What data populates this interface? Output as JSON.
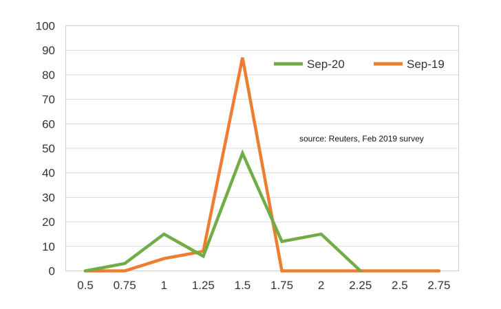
{
  "chart_data": {
    "type": "line",
    "x": [
      "0.5",
      "0.75",
      "1",
      "1.25",
      "1.5",
      "1.75",
      "2",
      "2.25",
      "2.5",
      "2.75"
    ],
    "series": [
      {
        "name": "Sep-20",
        "color": "#70ad47",
        "values": [
          0,
          3,
          15,
          6,
          48,
          12,
          15,
          0,
          null,
          null
        ]
      },
      {
        "name": "Sep-19",
        "color": "#ed7d31",
        "values": [
          0,
          0,
          5,
          8,
          87,
          0,
          0,
          0,
          0,
          0
        ]
      }
    ],
    "yticks": [
      "0",
      "10",
      "20",
      "30",
      "40",
      "50",
      "60",
      "70",
      "80",
      "90",
      "100"
    ],
    "ylim": [
      0,
      100
    ],
    "grid": true,
    "legend": "top-right",
    "annotation": "source:  Reuters, Feb 2019 survey"
  }
}
